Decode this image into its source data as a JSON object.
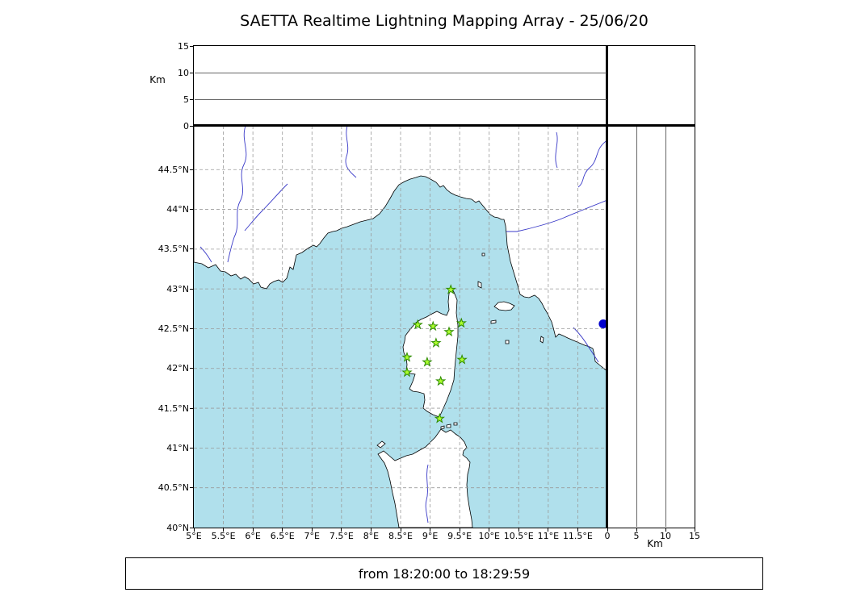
{
  "title": "SAETTA Realtime Lightning Mapping Array - 25/06/20",
  "footer": "from 18:20:00 to 18:29:59",
  "colors": {
    "sea": "#b0e0ec",
    "land": "#ffffff",
    "coastline": "#000000",
    "river": "#3a3ac8",
    "grid": "#999999",
    "station_fill": "#adff2f",
    "station_stroke": "#2e8b00",
    "detection": "#0000cd"
  },
  "axes": {
    "altitude": {
      "label": "Km",
      "tick_labels": [
        "0",
        "5",
        "10",
        "15"
      ],
      "tick_values": [
        0,
        5,
        10,
        15
      ],
      "range_km": [
        0,
        15
      ],
      "gridline_values": [
        5,
        10
      ]
    },
    "longitude": {
      "tick_labels": [
        "5°E",
        "5.5°E",
        "6°E",
        "6.5°E",
        "7°E",
        "7.5°E",
        "8°E",
        "8.5°E",
        "9°E",
        "9.5°E",
        "10°E",
        "10.5°E",
        "11°E",
        "11.5°E"
      ],
      "tick_values": [
        5,
        5.5,
        6,
        6.5,
        7,
        7.5,
        8,
        8.5,
        9,
        9.5,
        10,
        10.5,
        11,
        11.5
      ]
    },
    "latitude": {
      "tick_labels": [
        "44.5°N",
        "44°N",
        "43.5°N",
        "43°N",
        "42.5°N",
        "42°N",
        "41.5°N",
        "41°N",
        "40.5°N",
        "40°N"
      ],
      "tick_values": [
        44.5,
        44,
        43.5,
        43,
        42.5,
        42,
        41.5,
        41,
        40.5,
        40
      ]
    }
  },
  "map": {
    "lon_min": 5,
    "lon_max": 12.0,
    "lat_min": 40,
    "lat_max": 45.05
  },
  "chart_data": {
    "type": "scatter",
    "title": "SAETTA Realtime Lightning Mapping Array - 25/06/20",
    "x_axis": "longitude_deg_E",
    "y_axis": "latitude_deg_N",
    "lon_range": [
      5,
      12.0
    ],
    "lat_range": [
      40,
      45.05
    ],
    "altitude_range_km": [
      0,
      15
    ],
    "time_window": {
      "from": "18:20:00",
      "to": "18:29:59"
    },
    "stations": [
      {
        "lon": 9.35,
        "lat": 42.99
      },
      {
        "lon": 8.79,
        "lat": 42.55
      },
      {
        "lon": 9.05,
        "lat": 42.53
      },
      {
        "lon": 9.32,
        "lat": 42.46
      },
      {
        "lon": 9.53,
        "lat": 42.57
      },
      {
        "lon": 9.1,
        "lat": 42.32
      },
      {
        "lon": 8.61,
        "lat": 42.14
      },
      {
        "lon": 9.54,
        "lat": 42.11
      },
      {
        "lon": 8.95,
        "lat": 42.08
      },
      {
        "lon": 8.61,
        "lat": 41.95
      },
      {
        "lon": 9.18,
        "lat": 41.84
      },
      {
        "lon": 9.16,
        "lat": 41.37
      }
    ],
    "detections": [
      {
        "lon": 11.93,
        "lat": 42.56,
        "alt_km": 0
      }
    ]
  }
}
